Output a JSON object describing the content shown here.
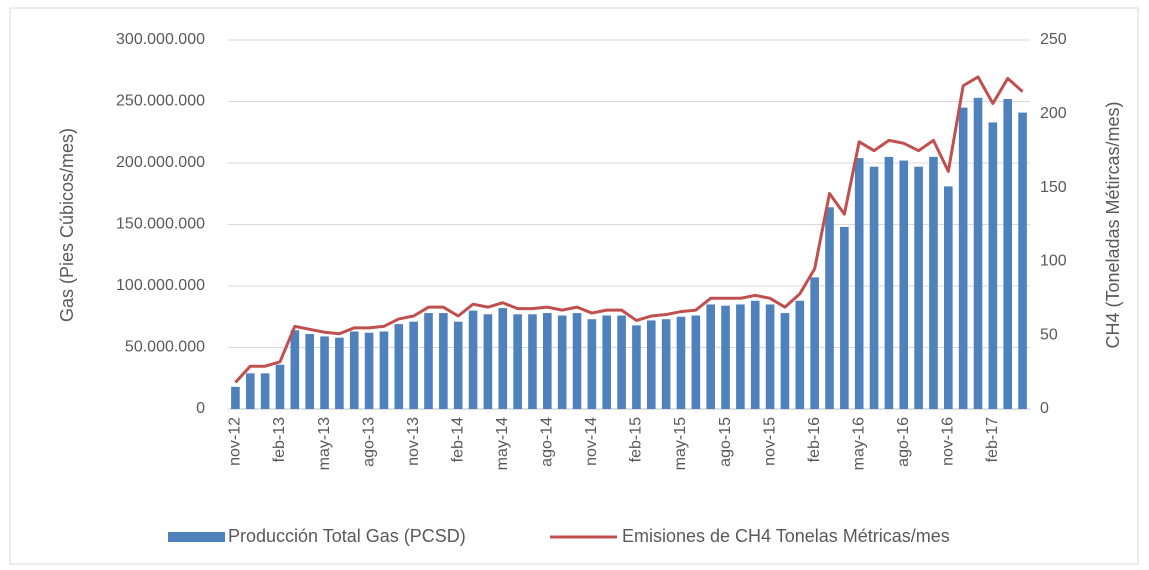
{
  "chart_data": {
    "type": "bar_line",
    "categories": [
      "nov-12",
      null,
      null,
      "feb-13",
      null,
      null,
      "may-13",
      null,
      null,
      "ago-13",
      null,
      null,
      "nov-13",
      null,
      null,
      "feb-14",
      null,
      null,
      "may-14",
      null,
      null,
      "ago-14",
      null,
      null,
      "nov-14",
      null,
      null,
      "feb-15",
      null,
      null,
      "may-15",
      null,
      null,
      "ago-15",
      null,
      null,
      "nov-15",
      null,
      null,
      "feb-16",
      null,
      null,
      "may-16",
      null,
      null,
      "ago-16",
      null,
      null,
      "nov-16",
      null,
      null,
      "feb-17",
      null,
      null
    ],
    "series": [
      {
        "name": "Producción Total Gas (PCSD)",
        "type": "bar",
        "color": "#4f81bd",
        "values": [
          18000000,
          29000000,
          29000000,
          36000000,
          64000000,
          61000000,
          59000000,
          58000000,
          63000000,
          62000000,
          63000000,
          69000000,
          71000000,
          78000000,
          78000000,
          71000000,
          80000000,
          77000000,
          82000000,
          77000000,
          77000000,
          78000000,
          76000000,
          78000000,
          73000000,
          76000000,
          76000000,
          68000000,
          72000000,
          73000000,
          75000000,
          76000000,
          85000000,
          84000000,
          85000000,
          88000000,
          85000000,
          78000000,
          88000000,
          107000000,
          164000000,
          148000000,
          204000000,
          197000000,
          205000000,
          202000000,
          197000000,
          205000000,
          181000000,
          245000000,
          253000000,
          233000000,
          252000000,
          241000000
        ]
      },
      {
        "name": "Emisiones de CH4 Tonelas Métricas/mes",
        "type": "line",
        "color": "#c0504d",
        "axis": "y2",
        "values": [
          18,
          29,
          29,
          32,
          56,
          54,
          52,
          51,
          55,
          55,
          56,
          61,
          63,
          69,
          69,
          63,
          71,
          69,
          72,
          68,
          68,
          69,
          67,
          69,
          65,
          67,
          67,
          60,
          63,
          64,
          66,
          67,
          75,
          75,
          75,
          77,
          75,
          69,
          78,
          95,
          146,
          132,
          181,
          175,
          182,
          180,
          175,
          182,
          161,
          219,
          225,
          207,
          224,
          215
        ]
      }
    ],
    "y_label": "Gas (Pies Cúbicos/mes)",
    "y2_label": "CH4 (Toneladas Métircas/mes)",
    "ylim": [
      0,
      300000000
    ],
    "yticks": [
      0,
      {
        "value": 50000000,
        "label": "50.000.000"
      },
      {
        "value": 100000000,
        "label": "100.000.000"
      },
      {
        "value": 150000000,
        "label": "150.000.000"
      },
      {
        "value": 200000000,
        "label": "200.000.000"
      },
      {
        "value": 250000000,
        "label": "250.000.000"
      },
      {
        "value": 300000000,
        "label": "300.000.000"
      }
    ],
    "y2lim": [
      0,
      250
    ],
    "y2ticks": [
      0,
      50,
      100,
      150,
      200,
      250
    ],
    "grid": true,
    "legend": "bottom"
  }
}
